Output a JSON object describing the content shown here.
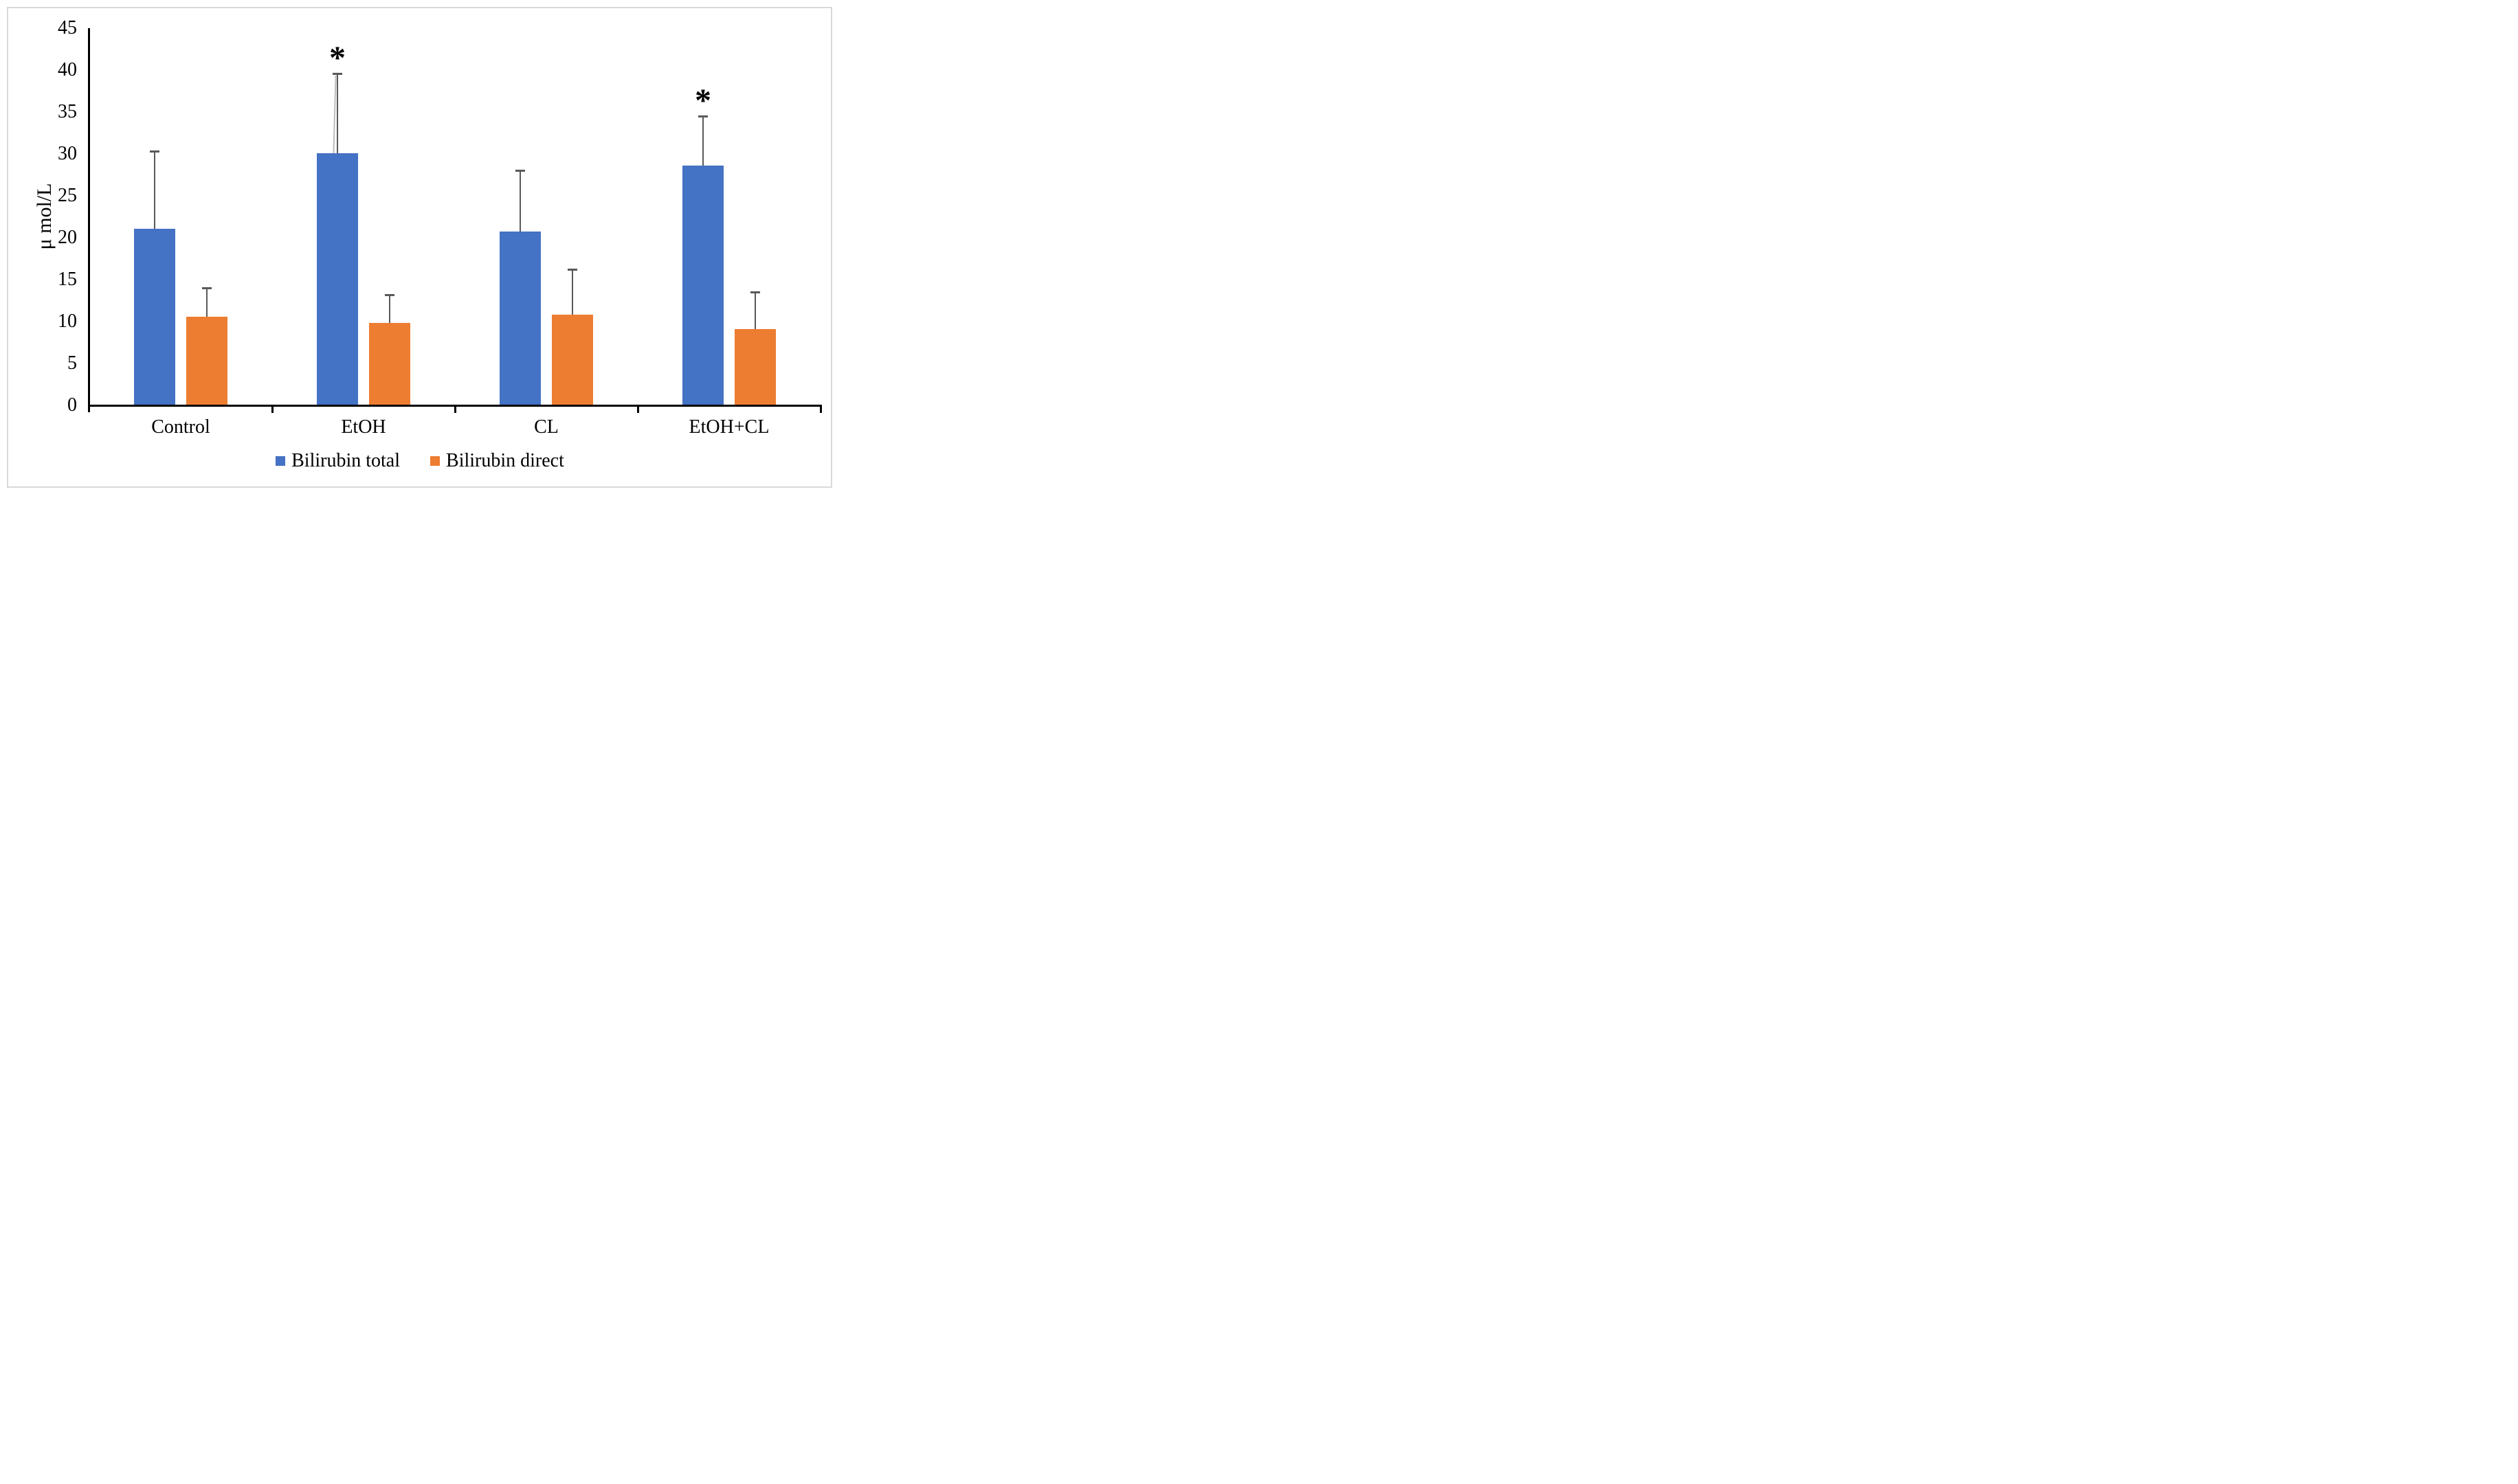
{
  "figure": {
    "background_color": "#ffffff",
    "border_color": "#d9d9d9"
  },
  "chart_data": {
    "type": "bar",
    "title": "",
    "xlabel": "",
    "ylabel": "μ mol/L",
    "categories": [
      "Control",
      "EtOH",
      "CL",
      "EtOH+CL"
    ],
    "series": [
      {
        "name": "Bilirubin total",
        "color": "#4472C4",
        "values": [
          21.1,
          30.1,
          20.7,
          28.6
        ],
        "errors": [
          9.2,
          9.5,
          7.3,
          5.9
        ]
      },
      {
        "name": "Bilirubin direct",
        "color": "#ED7D31",
        "values": [
          10.6,
          9.8,
          10.8,
          9.1
        ],
        "errors": [
          3.4,
          3.4,
          5.4,
          4.4
        ]
      }
    ],
    "annotations": [
      {
        "text": "*",
        "category_index": 1,
        "series_index": 0
      },
      {
        "text": "*",
        "category_index": 3,
        "series_index": 0
      }
    ],
    "ylim": [
      0,
      45
    ],
    "yticks": [
      0,
      5,
      10,
      15,
      20,
      25,
      30,
      35,
      40,
      45
    ],
    "grid": false,
    "legend_position": "bottom",
    "axis_color": "#000000",
    "error_bar_color": "#595959"
  }
}
